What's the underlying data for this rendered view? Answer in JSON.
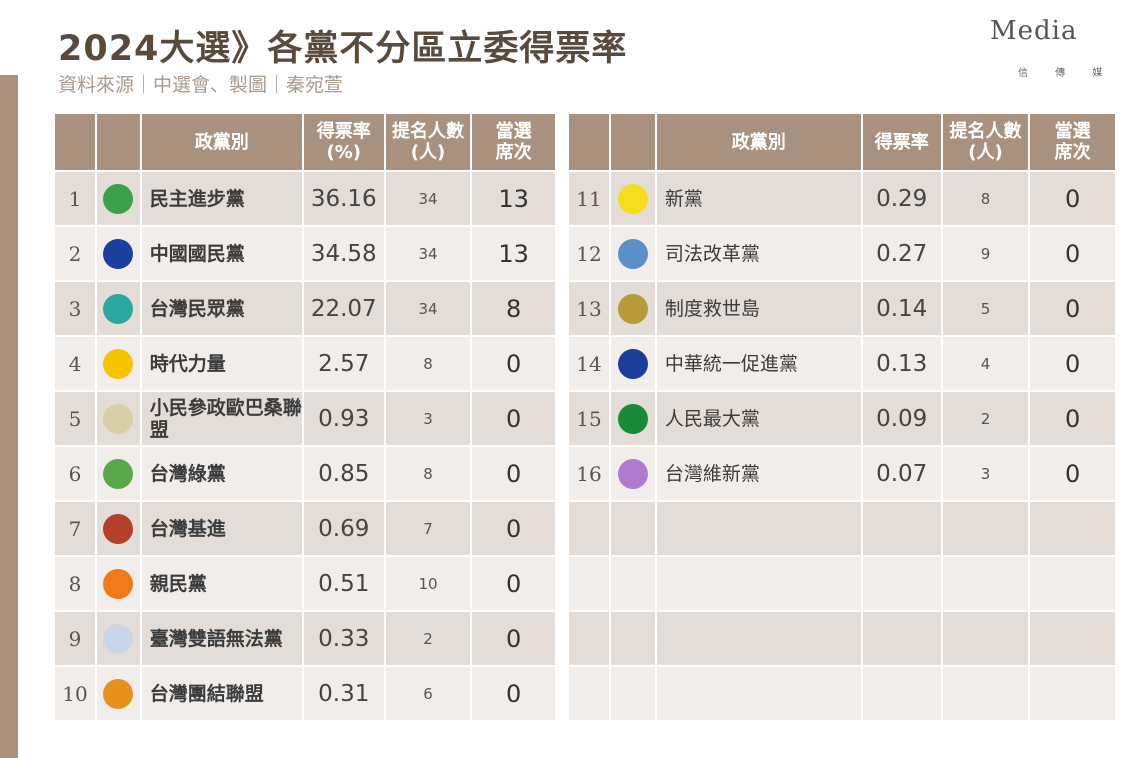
{
  "title": "2024大選》各黨不分區立委得票率",
  "subtitle": "資料來源｜中選會、製圖｜秦宛萱",
  "logo": {
    "main": "Media",
    "sub": "信 傳 媒"
  },
  "left_headers": [
    "",
    "",
    "政黨別",
    "得票率\n(%)",
    "提名人數\n(人)",
    "當選\n席次"
  ],
  "right_headers": [
    "",
    "",
    "政黨別",
    "得票率",
    "提名人數\n(人)",
    "當選\n席次"
  ],
  "colors": {
    "header": "#a8927f",
    "row_dark": "#e3dcd7",
    "row_light": "#f1edeb",
    "title": "#5a4a3c"
  },
  "left_rows": [
    {
      "no": "1",
      "logo": "dpp-logo",
      "color": "#3aa14a",
      "name": "民主進步黨",
      "rate": "36.16",
      "nominated": "34",
      "seats": "13",
      "bold": true
    },
    {
      "no": "2",
      "logo": "kmt-logo",
      "color": "#1b3f9c",
      "name": "中國國民黨",
      "rate": "34.58",
      "nominated": "34",
      "seats": "13",
      "bold": true
    },
    {
      "no": "3",
      "logo": "tpp-logo",
      "color": "#2aa8a0",
      "name": "台灣民眾黨",
      "rate": "22.07",
      "nominated": "34",
      "seats": "8",
      "bold": true
    },
    {
      "no": "4",
      "logo": "npp-logo",
      "color": "#f5c400",
      "name": "時代力量",
      "rate": "2.57",
      "nominated": "8",
      "seats": "0",
      "bold": true
    },
    {
      "no": "5",
      "logo": "obasan-logo",
      "color": "#d8cfa8",
      "name": "小民參政歐巴桑聯盟",
      "rate": "0.93",
      "nominated": "3",
      "seats": "0",
      "bold": true
    },
    {
      "no": "6",
      "logo": "green-party-logo",
      "color": "#5ba84a",
      "name": "台灣綠黨",
      "rate": "0.85",
      "nominated": "8",
      "seats": "0",
      "bold": true
    },
    {
      "no": "7",
      "logo": "statebuilding-logo",
      "color": "#b2402a",
      "name": "台灣基進",
      "rate": "0.69",
      "nominated": "7",
      "seats": "0",
      "bold": true
    },
    {
      "no": "8",
      "logo": "pfp-logo",
      "color": "#f07a1a",
      "name": "親民黨",
      "rate": "0.51",
      "nominated": "10",
      "seats": "0",
      "bold": true
    },
    {
      "no": "9",
      "logo": "bilingual-logo",
      "color": "#c9d6ea",
      "name": "臺灣雙語無法黨",
      "rate": "0.33",
      "nominated": "2",
      "seats": "0",
      "bold": true
    },
    {
      "no": "10",
      "logo": "tsu-logo",
      "color": "#e8901c",
      "name": "台灣團結聯盟",
      "rate": "0.31",
      "nominated": "6",
      "seats": "0",
      "bold": true
    }
  ],
  "right_rows": [
    {
      "no": "11",
      "logo": "new-party-logo",
      "color": "#f5dc1e",
      "name": "新黨",
      "rate": "0.29",
      "nominated": "8",
      "seats": "0"
    },
    {
      "no": "12",
      "logo": "judicial-reform-logo",
      "color": "#5a8fc8",
      "name": "司法改革黨",
      "rate": "0.27",
      "nominated": "9",
      "seats": "0"
    },
    {
      "no": "13",
      "logo": "institution-island-logo",
      "color": "#b89a3a",
      "name": "制度救世島",
      "rate": "0.14",
      "nominated": "5",
      "seats": "0"
    },
    {
      "no": "14",
      "logo": "unification-logo",
      "color": "#1c3e9a",
      "name": "中華統一促進黨",
      "rate": "0.13",
      "nominated": "4",
      "seats": "0"
    },
    {
      "no": "15",
      "logo": "peoples-party-logo",
      "color": "#1a8a3a",
      "name": "人民最大黨",
      "rate": "0.09",
      "nominated": "2",
      "seats": "0"
    },
    {
      "no": "16",
      "logo": "restoration-logo",
      "color": "#b07ad0",
      "name": "台灣維新黨",
      "rate": "0.07",
      "nominated": "3",
      "seats": "0"
    },
    {},
    {},
    {},
    {}
  ]
}
